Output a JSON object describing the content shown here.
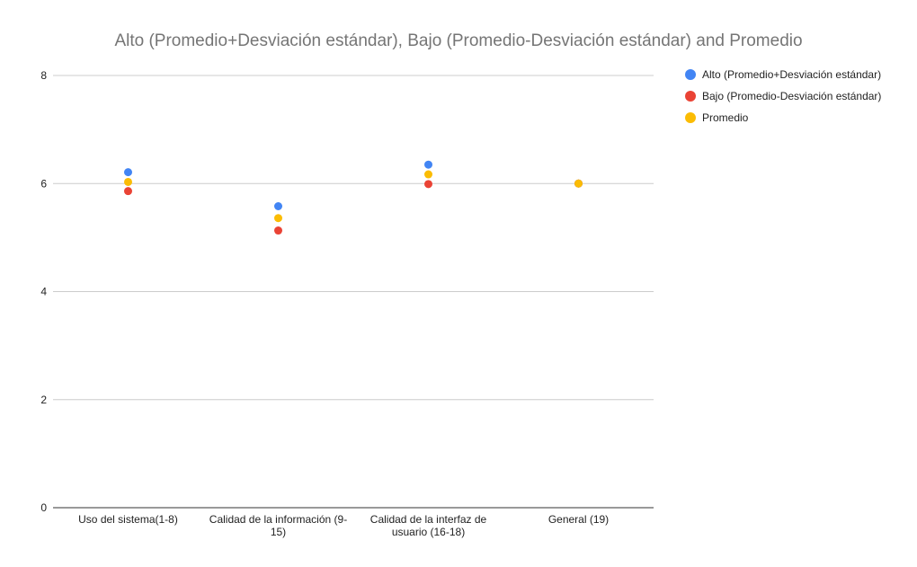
{
  "chart_data": {
    "type": "scatter",
    "title": "Alto (Promedio+Desviación estándar), Bajo (Promedio-Desviación estándar) and Promedio",
    "xlabel": "",
    "ylabel": "",
    "categories": [
      [
        "Uso del sistema(1-8)"
      ],
      [
        "Calidad de la información (9-",
        "15)"
      ],
      [
        "Calidad de la interfaz de",
        "usuario (16-18)"
      ],
      [
        "General (19)"
      ]
    ],
    "series": [
      {
        "name": "Alto (Promedio+Desviación estándar)",
        "color": "#4285f4",
        "values": [
          6.21,
          5.58,
          6.35,
          6.0
        ]
      },
      {
        "name": "Bajo (Promedio-Desviación estándar)",
        "color": "#ea4335",
        "values": [
          5.86,
          5.13,
          5.99,
          6.0
        ]
      },
      {
        "name": "Promedio",
        "color": "#fbbc04",
        "values": [
          6.03,
          5.36,
          6.17,
          6.0
        ]
      }
    ],
    "ylim": [
      0,
      8
    ],
    "yticks": [
      0,
      2,
      4,
      6,
      8
    ],
    "grid": true,
    "legend": "right"
  }
}
